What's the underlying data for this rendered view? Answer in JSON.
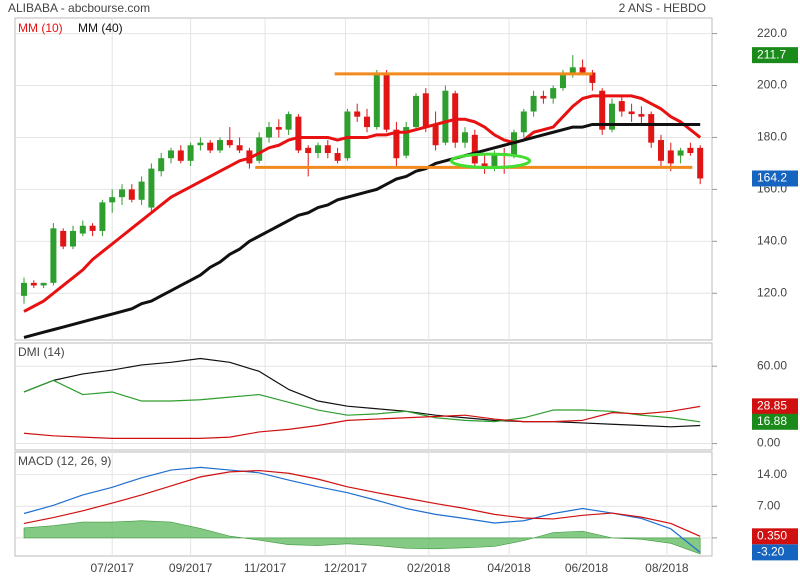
{
  "chart_data": [
    {
      "type": "candlestick",
      "title": "ALIBABA - abcbourse.com",
      "subtitle": "2 ANS - HEBDO",
      "up_color": "#2e9e2e",
      "down_color": "#e01515",
      "xticks": [
        {
          "value": 9,
          "label": "07/2017"
        },
        {
          "value": 17,
          "label": "09/2017"
        },
        {
          "value": 24.6,
          "label": "11/2017"
        },
        {
          "value": 32.8,
          "label": "12/2017"
        },
        {
          "value": 41.3,
          "label": "02/2018"
        },
        {
          "value": 49.5,
          "label": "04/2018"
        },
        {
          "value": 57.4,
          "label": "06/2018"
        },
        {
          "value": 65.6,
          "label": "08/2018"
        }
      ],
      "ylim": [
        102,
        226
      ],
      "yticks": [
        {
          "value": 120,
          "label": "120.0"
        },
        {
          "value": 140,
          "label": "140.0"
        },
        {
          "value": 160,
          "label": "160.0"
        },
        {
          "value": 180,
          "label": "180.0"
        },
        {
          "value": 200,
          "label": "200.0"
        },
        {
          "value": 220,
          "label": "220.0"
        }
      ],
      "grid": true,
      "open": [
        119,
        124,
        123,
        124,
        144,
        138,
        143,
        146,
        144,
        155,
        157,
        160,
        156,
        153,
        167,
        172,
        175,
        171,
        177,
        178,
        175,
        179,
        177,
        175,
        171,
        180,
        184,
        183,
        188,
        176,
        174,
        177,
        174,
        172,
        190,
        188,
        184,
        205,
        183,
        173,
        184,
        197,
        185,
        178,
        197,
        178,
        181,
        170,
        169,
        174,
        173,
        182,
        190,
        196,
        195,
        199,
        205,
        207,
        205,
        198,
        183,
        194,
        190,
        189,
        189,
        179,
        175,
        173,
        176,
        176
      ],
      "high": [
        126,
        125,
        124,
        147,
        145,
        146,
        148,
        147,
        156,
        160,
        162,
        162,
        165,
        170,
        174,
        176,
        177,
        178,
        180,
        179,
        180,
        184,
        180,
        176,
        182,
        186,
        187,
        190,
        189,
        177,
        178,
        179,
        176,
        191,
        193,
        191,
        206,
        206,
        186,
        186,
        197,
        199,
        190,
        200,
        198,
        184,
        183,
        174,
        175,
        176,
        183,
        191,
        198,
        198,
        200,
        206,
        211.7,
        210,
        206,
        199,
        195,
        196,
        193,
        192,
        190,
        181,
        178,
        176,
        178,
        177
      ],
      "low": [
        116,
        122,
        122,
        123,
        137,
        137,
        142,
        142,
        142,
        151,
        154,
        155,
        154,
        151,
        165,
        170,
        170,
        169,
        175,
        174,
        174,
        176,
        174,
        168,
        170,
        178,
        180,
        181,
        174,
        165,
        172,
        172,
        170,
        171,
        186,
        182,
        183,
        182,
        169,
        172,
        183,
        182,
        175,
        177,
        176,
        176,
        168,
        166,
        167,
        166,
        172,
        180,
        188,
        193,
        193,
        198,
        203,
        204,
        198,
        181,
        182,
        188,
        186,
        185,
        176,
        168,
        167,
        170,
        173,
        162
      ],
      "close": [
        124,
        123,
        124,
        145,
        138,
        144,
        146,
        144,
        155,
        157,
        160,
        156,
        163,
        168,
        172,
        175,
        171,
        177,
        178,
        175,
        179,
        177,
        175,
        170,
        180,
        184,
        183,
        189,
        175,
        174,
        177,
        174,
        171,
        190,
        188,
        184,
        204,
        183,
        172,
        184,
        196,
        184,
        177,
        198,
        178,
        182,
        170,
        168,
        174,
        173,
        182,
        190,
        196,
        195,
        199,
        204,
        207,
        205,
        201,
        183,
        193,
        190,
        189,
        188,
        178,
        171,
        170,
        175,
        174,
        164.2
      ],
      "series": [
        {
          "name": "MM (10)",
          "color": "#e81010",
          "width": 3,
          "values": [
            113,
            115,
            117,
            120,
            123,
            126,
            129,
            133,
            136,
            139,
            142,
            145,
            148,
            151,
            154,
            157,
            159,
            161,
            163,
            165,
            167,
            169,
            171,
            172,
            174,
            176,
            177,
            179,
            180,
            180,
            180,
            180,
            179,
            180,
            180,
            180,
            181,
            181,
            182,
            182,
            183,
            184,
            185,
            186,
            187,
            187,
            186,
            184,
            181,
            179,
            178,
            179,
            182,
            183,
            184,
            188,
            192,
            195,
            196,
            196,
            196,
            196,
            196,
            195,
            193,
            191,
            188,
            186,
            183,
            180
          ]
        },
        {
          "name": "MM (40)",
          "color": "#111111",
          "width": 3,
          "values": [
            103,
            104,
            105,
            106,
            107,
            108,
            109,
            110,
            111,
            112,
            113,
            114,
            116,
            117,
            119,
            121,
            123,
            125,
            127,
            130,
            132,
            135,
            137,
            140,
            142,
            144,
            146,
            148,
            150,
            151,
            153,
            154,
            156,
            157,
            158,
            159,
            160,
            162,
            164,
            165,
            167,
            168,
            170,
            171,
            172,
            173,
            174,
            175,
            176,
            177,
            178,
            179,
            180,
            181,
            182,
            183,
            184,
            184,
            185,
            185,
            185,
            185,
            185,
            185,
            185,
            185,
            185,
            185,
            185,
            185
          ]
        }
      ],
      "annotations": [
        {
          "type": "hline",
          "value": 204.5,
          "from": 31.7,
          "to": 58,
          "color": "#f08a1c"
        },
        {
          "type": "hline",
          "value": 168.5,
          "from": 23.6,
          "to": 68.2,
          "color": "#f08a1c"
        },
        {
          "type": "ellipse",
          "x": 47.6,
          "y": 171,
          "rx": 4,
          "ry": 2.6,
          "color": "#44dd33"
        }
      ],
      "markers": [
        {
          "value": 211.7,
          "color": "#1a8a1a"
        },
        {
          "value": 164.2,
          "color": "#1565c0"
        }
      ]
    },
    {
      "type": "line",
      "title": "DMI (14)",
      "x": [
        0,
        3,
        6,
        9,
        12,
        15,
        18,
        21,
        24,
        27,
        30,
        33,
        36,
        39,
        42,
        45,
        48,
        51,
        54,
        57,
        60,
        63,
        66,
        69
      ],
      "ylim": [
        -5,
        78
      ],
      "yticks": [
        {
          "value": 0,
          "label": "0.00"
        },
        {
          "value": 60,
          "label": "60.00"
        }
      ],
      "grid": true,
      "series": [
        {
          "color": "#111111",
          "values": [
            40,
            49,
            54,
            57,
            61,
            63,
            66,
            63,
            56,
            42,
            33,
            29,
            27,
            25,
            22,
            20,
            18,
            17,
            17,
            16,
            15,
            14,
            13,
            14
          ]
        },
        {
          "color": "#2e9e2e",
          "values": [
            40,
            49,
            38,
            40,
            33,
            33,
            34,
            36,
            38,
            32,
            26,
            22,
            23,
            25,
            20,
            18,
            17,
            20,
            26,
            26,
            25,
            22,
            20,
            16.88
          ]
        },
        {
          "color": "#d01010",
          "values": [
            8,
            6,
            5,
            4,
            4,
            4,
            4,
            5,
            9,
            11,
            14,
            18,
            19,
            20,
            21,
            22,
            19,
            17,
            17,
            18,
            24,
            23,
            25,
            28.85
          ]
        }
      ],
      "markers": [
        {
          "value": 28.85,
          "color": "#d01010"
        },
        {
          "value": 16.88,
          "color": "#1a8a1a"
        }
      ]
    },
    {
      "type": "line",
      "title": "MACD (12, 26, 9)",
      "x": [
        0,
        3,
        6,
        9,
        12,
        15,
        18,
        21,
        24,
        27,
        30,
        33,
        36,
        39,
        42,
        45,
        48,
        51,
        54,
        57,
        60,
        63,
        66,
        69
      ],
      "ylim": [
        -4,
        19
      ],
      "yticks": [
        {
          "value": 0,
          "label": "0.00"
        },
        {
          "value": 7,
          "label": "7.00"
        },
        {
          "value": 14,
          "label": "14.00"
        }
      ],
      "grid": true,
      "series": [
        {
          "style": "area",
          "color": "#6fbf6f",
          "values": [
            2.2,
            2.7,
            3.5,
            3.5,
            3.8,
            3.5,
            2.1,
            0.4,
            -0.5,
            -1.5,
            -1.7,
            -1.3,
            -1.7,
            -2.3,
            -2.4,
            -2.2,
            -1.9,
            -0.6,
            1.2,
            1.5,
            0,
            -0.3,
            -1.2,
            -3.55
          ]
        },
        {
          "color": "#1f6fd0",
          "values": [
            5.4,
            7.2,
            9.5,
            11.2,
            13.3,
            15,
            15.6,
            15,
            14.4,
            12.8,
            11.3,
            10,
            8.3,
            6.5,
            5.2,
            4.3,
            3.3,
            3.8,
            5.4,
            6.5,
            5.5,
            4.3,
            2.0,
            -3.2
          ]
        },
        {
          "color": "#d01010",
          "values": [
            3.2,
            4.5,
            6,
            7.7,
            9.5,
            11.5,
            13.5,
            14.6,
            14.9,
            14.3,
            13,
            11.3,
            10,
            8.8,
            7.6,
            6.5,
            5.2,
            4.4,
            4.2,
            5.0,
            5.5,
            4.6,
            3.2,
            0.35
          ]
        }
      ],
      "markers": [
        {
          "value": 0.35,
          "label": "0.350",
          "color": "#d01010"
        },
        {
          "value": -3.2,
          "label": "-3.20",
          "color": "#1565c0"
        }
      ]
    }
  ]
}
